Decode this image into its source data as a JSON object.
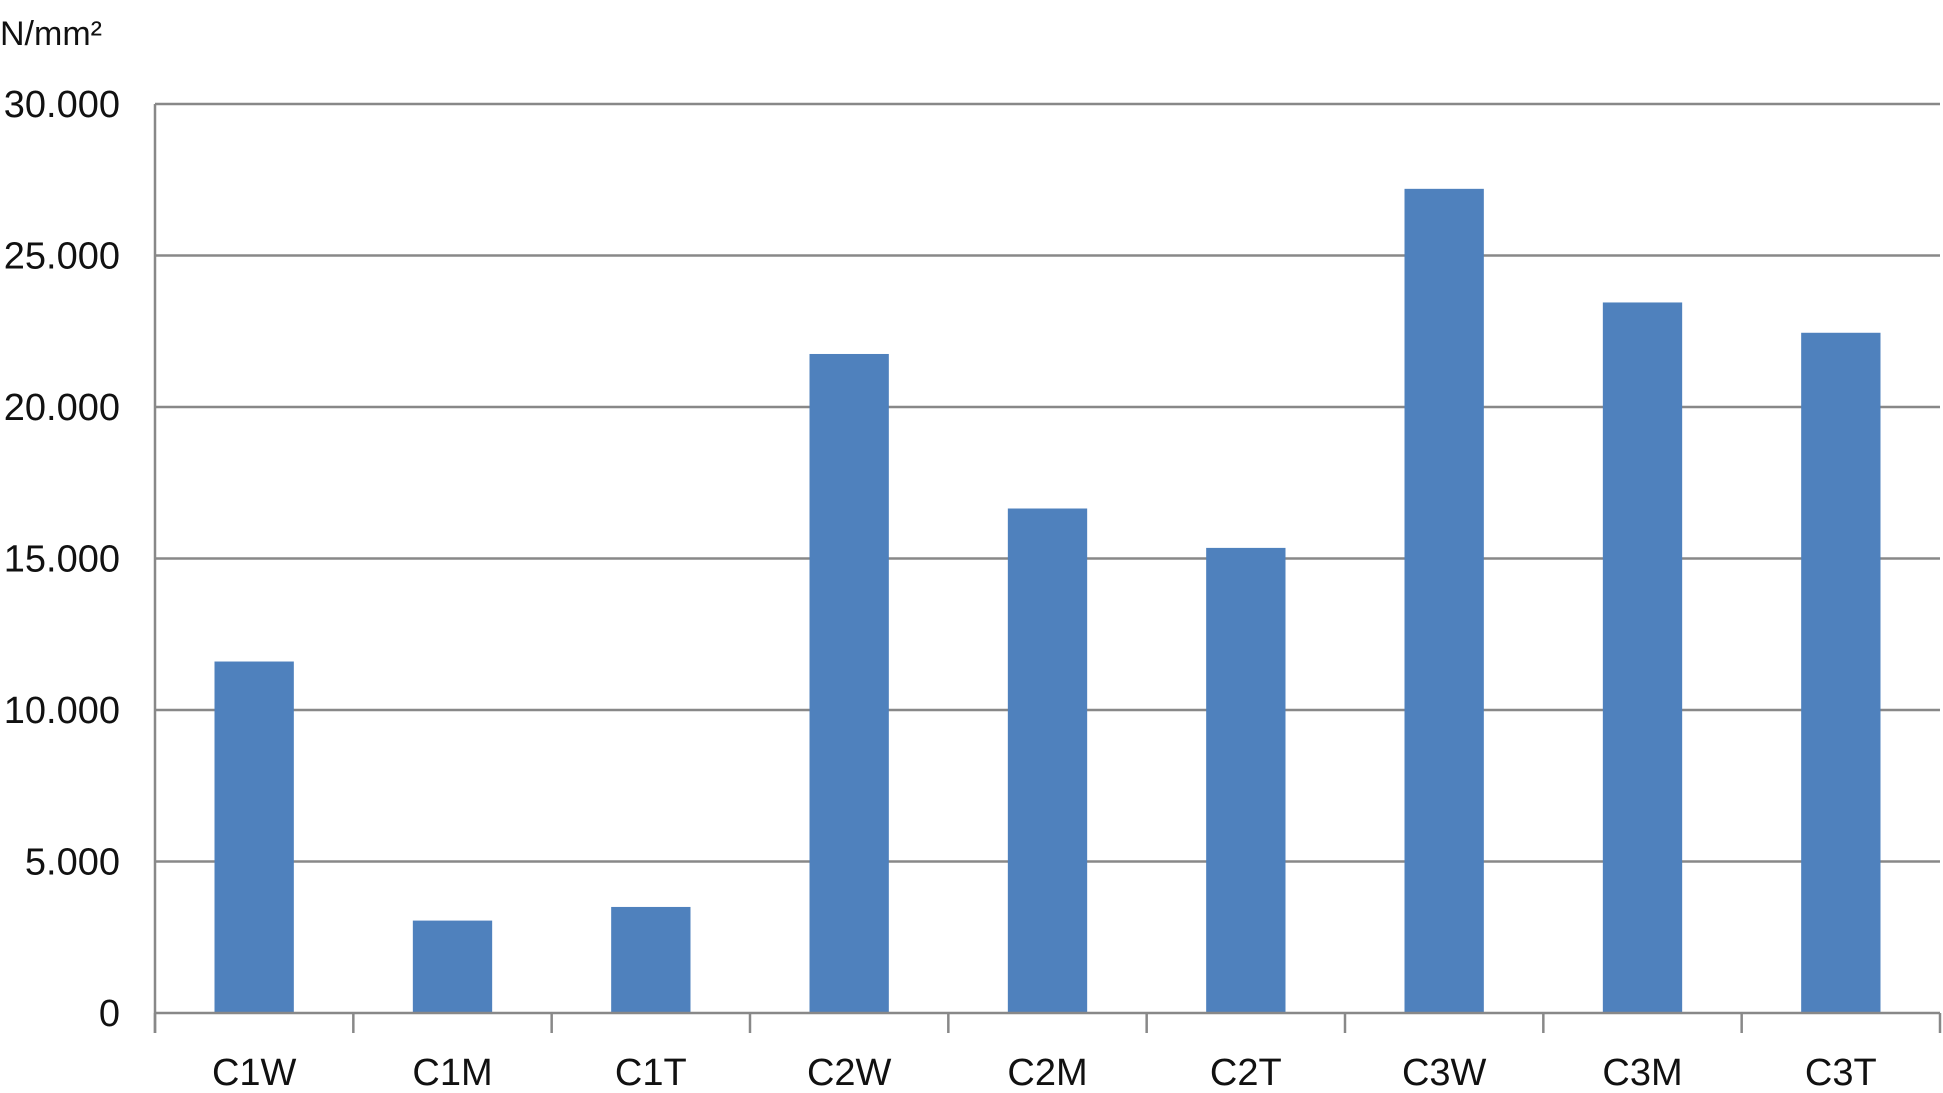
{
  "chart_data": {
    "type": "bar",
    "ylabel": "N/mm²",
    "categories": [
      "C1W",
      "C1M",
      "C1T",
      "C2W",
      "C2M",
      "C2T",
      "C3W",
      "C3M",
      "C3T"
    ],
    "values": [
      11.6,
      3.05,
      3.5,
      21.75,
      16.65,
      15.35,
      27.2,
      23.45,
      22.45
    ],
    "ylim": [
      0,
      30
    ],
    "yticks": [
      0,
      5,
      10,
      15,
      20,
      25,
      30
    ],
    "ytick_labels": [
      "0",
      "5.000",
      "10.000",
      "15.000",
      "20.000",
      "25.000",
      "30.000"
    ],
    "grid": true,
    "legend": "none",
    "bar_color": "#4f81bd",
    "grid_color": "#888888"
  }
}
